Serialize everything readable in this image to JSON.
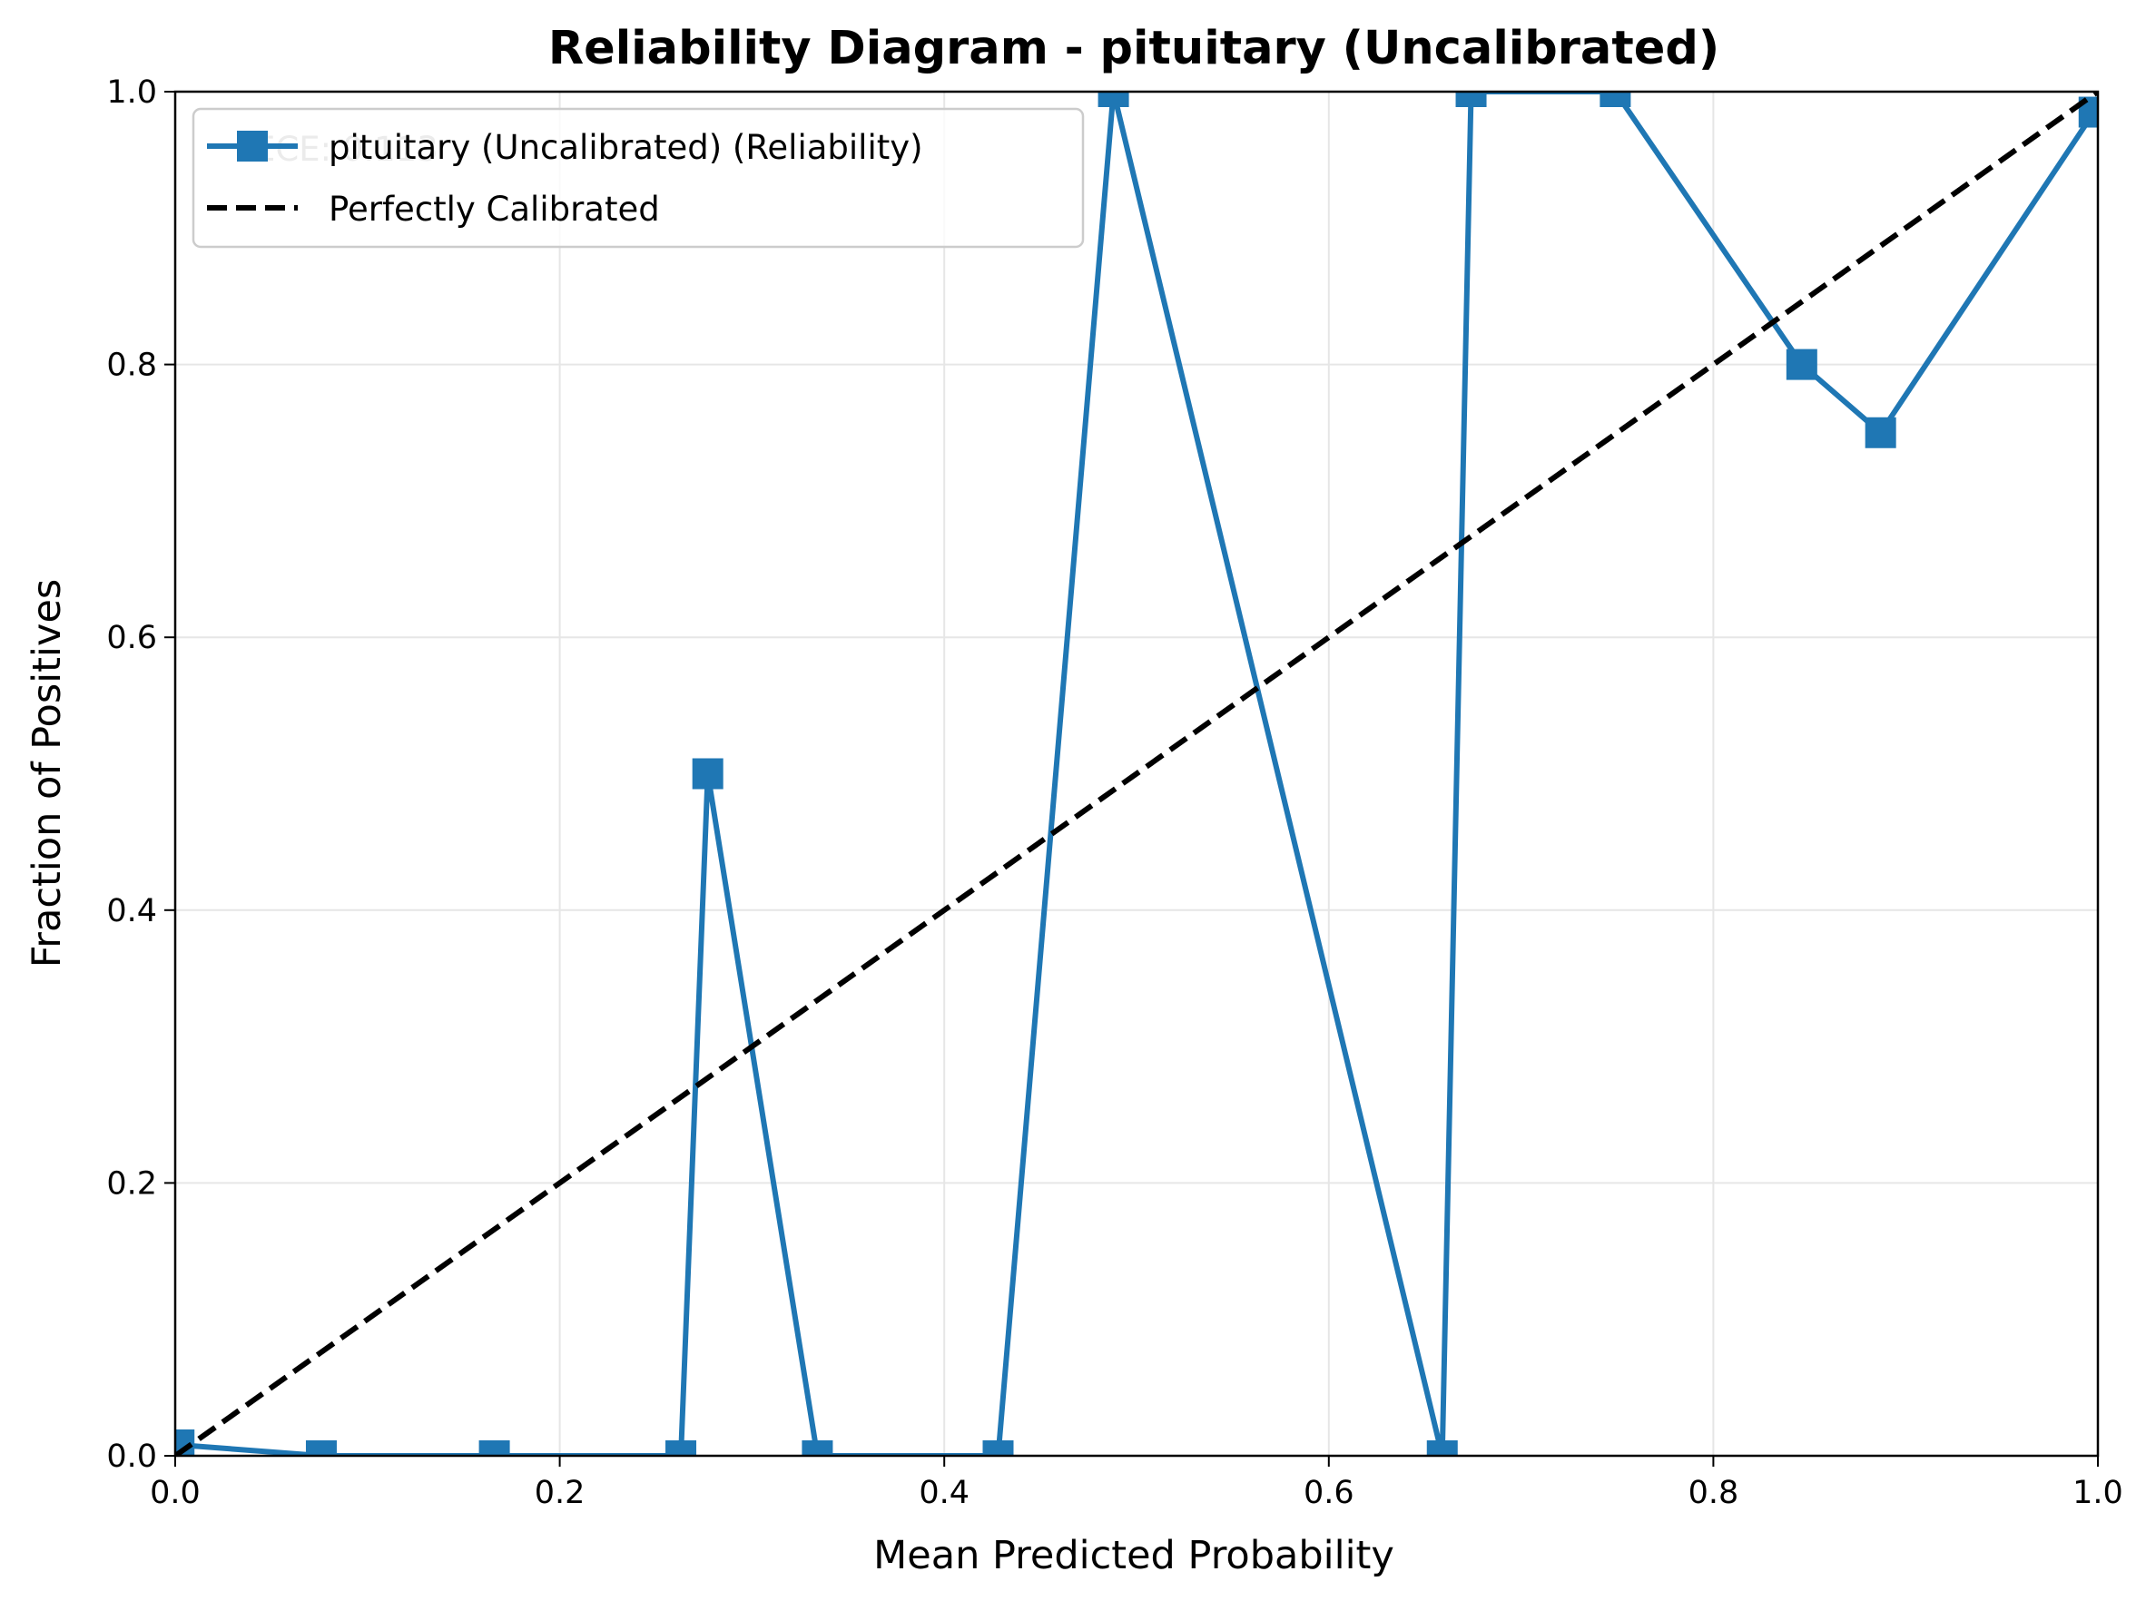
{
  "chart_data": {
    "type": "line",
    "title": "Reliability Diagram - pituitary (Uncalibrated)",
    "xlabel": "Mean Predicted Probability",
    "ylabel": "Fraction of Positives",
    "xlim": [
      0.0,
      1.0
    ],
    "ylim": [
      0.0,
      1.0
    ],
    "xticks": [
      "0.0",
      "0.2",
      "0.4",
      "0.6",
      "0.8",
      "1.0"
    ],
    "yticks": [
      "0.0",
      "0.2",
      "0.4",
      "0.6",
      "0.8",
      "1.0"
    ],
    "grid": true,
    "legend_position": "top-left",
    "annotation": "ECE: 0.113",
    "series": [
      {
        "name": "pituitary (Uncalibrated) (Reliability)",
        "color": "#1f77b4",
        "marker": "square",
        "line_style": "solid",
        "x": [
          0.002,
          0.076,
          0.166,
          0.263,
          0.277,
          0.334,
          0.428,
          0.488,
          0.659,
          0.674,
          0.749,
          0.846,
          0.887,
          0.998
        ],
        "y": [
          0.008,
          0.0,
          0.0,
          0.0,
          0.5,
          0.0,
          0.0,
          1.0,
          0.0,
          1.0,
          1.0,
          0.8,
          0.75,
          0.985
        ]
      },
      {
        "name": "Perfectly Calibrated",
        "color": "#000000",
        "marker": "none",
        "line_style": "dashed",
        "x": [
          0.0,
          1.0
        ],
        "y": [
          0.0,
          1.0
        ]
      }
    ]
  }
}
